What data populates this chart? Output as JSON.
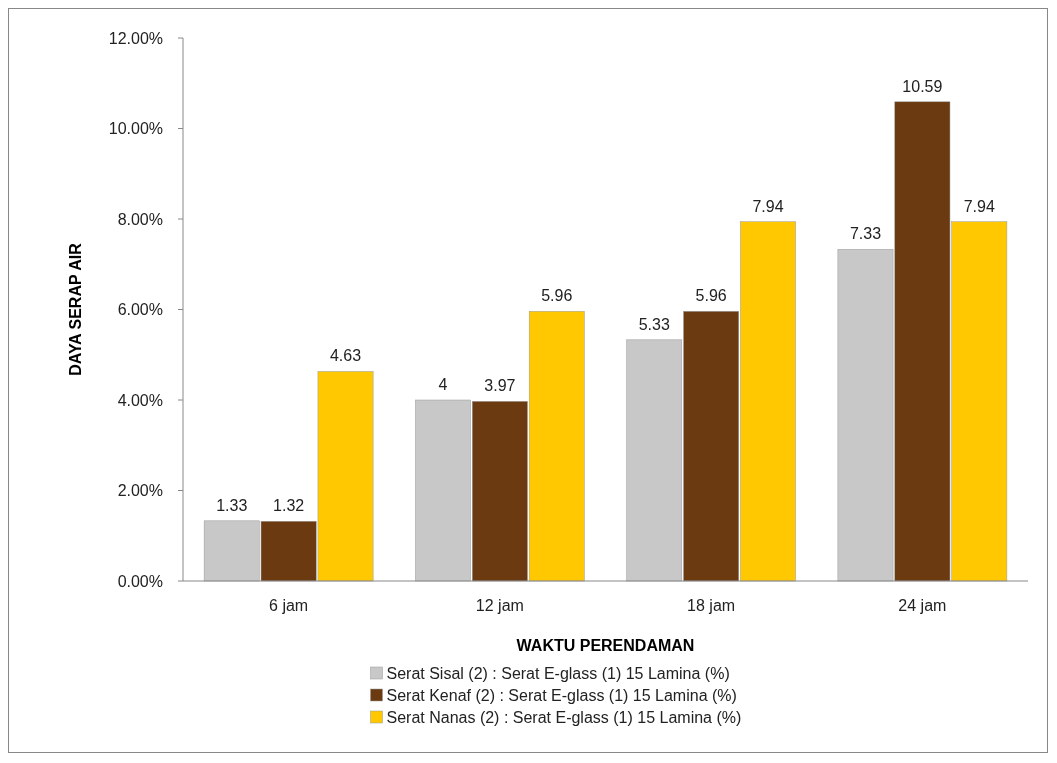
{
  "chart_data": {
    "type": "bar",
    "xlabel": "WAKTU PERENDAMAN",
    "ylabel": "DAYA SERAP AIR",
    "categories": [
      "6 jam",
      "12 jam",
      "18 jam",
      "24 jam"
    ],
    "series": [
      {
        "name": "Serat Sisal (2) : Serat E-glass (1) 15 Lamina (%)",
        "color": "#c8c8c8",
        "values": [
          1.33,
          4,
          5.33,
          7.33
        ]
      },
      {
        "name": "Serat Kenaf (2) : Serat E-glass (1) 15 Lamina (%)",
        "color": "#6b3a10",
        "values": [
          1.32,
          3.97,
          5.96,
          10.59
        ]
      },
      {
        "name": "Serat Nanas (2) : Serat E-glass (1) 15 Lamina (%)",
        "color": "#ffc800",
        "values": [
          4.63,
          5.96,
          7.94,
          7.94
        ]
      }
    ],
    "ylim": [
      0,
      12
    ],
    "yticks": [
      {
        "value": 0,
        "label": "0.00%"
      },
      {
        "value": 2,
        "label": "2.00%"
      },
      {
        "value": 4,
        "label": "4.00%"
      },
      {
        "value": 6,
        "label": "6.00%"
      },
      {
        "value": 8,
        "label": "8.00%"
      },
      {
        "value": 10,
        "label": "10.00%"
      },
      {
        "value": 12,
        "label": "12.00%"
      }
    ],
    "data_labels": true,
    "legend": "bottom",
    "grid": false
  }
}
